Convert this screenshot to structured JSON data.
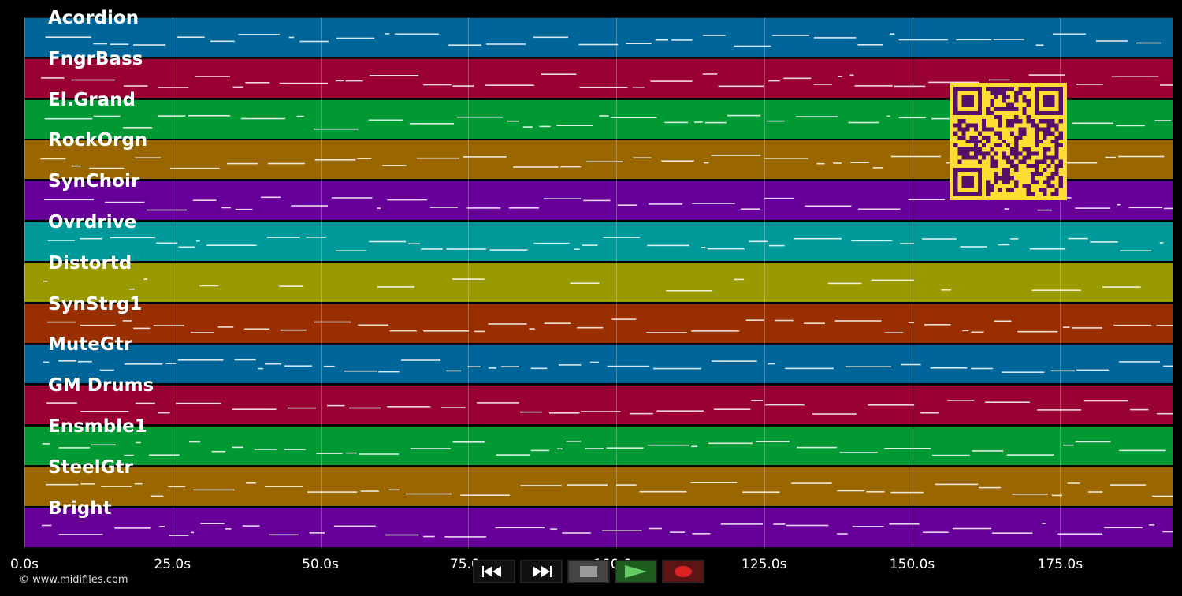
{
  "tracks": [
    {
      "name": "Acordion",
      "color": "#006699"
    },
    {
      "name": "FngrBass",
      "color": "#990033"
    },
    {
      "name": "El.Grand",
      "color": "#009933"
    },
    {
      "name": "RockOrgn",
      "color": "#996600"
    },
    {
      "name": "SynChoir",
      "color": "#660099"
    },
    {
      "name": "Ovrdrive",
      "color": "#009999"
    },
    {
      "name": "Distortd",
      "color": "#999900"
    },
    {
      "name": "SynStrg1",
      "color": "#992e00"
    },
    {
      "name": "MuteGtr",
      "color": "#006699"
    },
    {
      "name": "GM Drums",
      "color": "#990033"
    },
    {
      "name": "Ensmble1",
      "color": "#009933"
    },
    {
      "name": "SteelGtr",
      "color": "#996600"
    },
    {
      "name": "Bright",
      "color": "#660099"
    }
  ],
  "timeline": {
    "ticks": [
      "0.0s",
      "25.0s",
      "50.0s",
      "75.0s",
      "100.0s",
      "125.0s",
      "150.0s",
      "175.0s"
    ],
    "tick_seconds": [
      0,
      25,
      50,
      75,
      100,
      125,
      150,
      175
    ],
    "duration_seconds": 194
  },
  "footer": {
    "copyright": "© www.midifiles.com"
  },
  "controls": [
    {
      "name": "rewind-button",
      "icon": "rewind-icon"
    },
    {
      "name": "fast-forward-button",
      "icon": "fast-forward-icon"
    },
    {
      "name": "stop-button",
      "icon": "stop-icon"
    },
    {
      "name": "play-button",
      "icon": "play-icon"
    },
    {
      "name": "record-button",
      "icon": "record-icon"
    }
  ],
  "qr": {
    "color_fg": "#55116a",
    "color_bg": "#ffdd33"
  }
}
